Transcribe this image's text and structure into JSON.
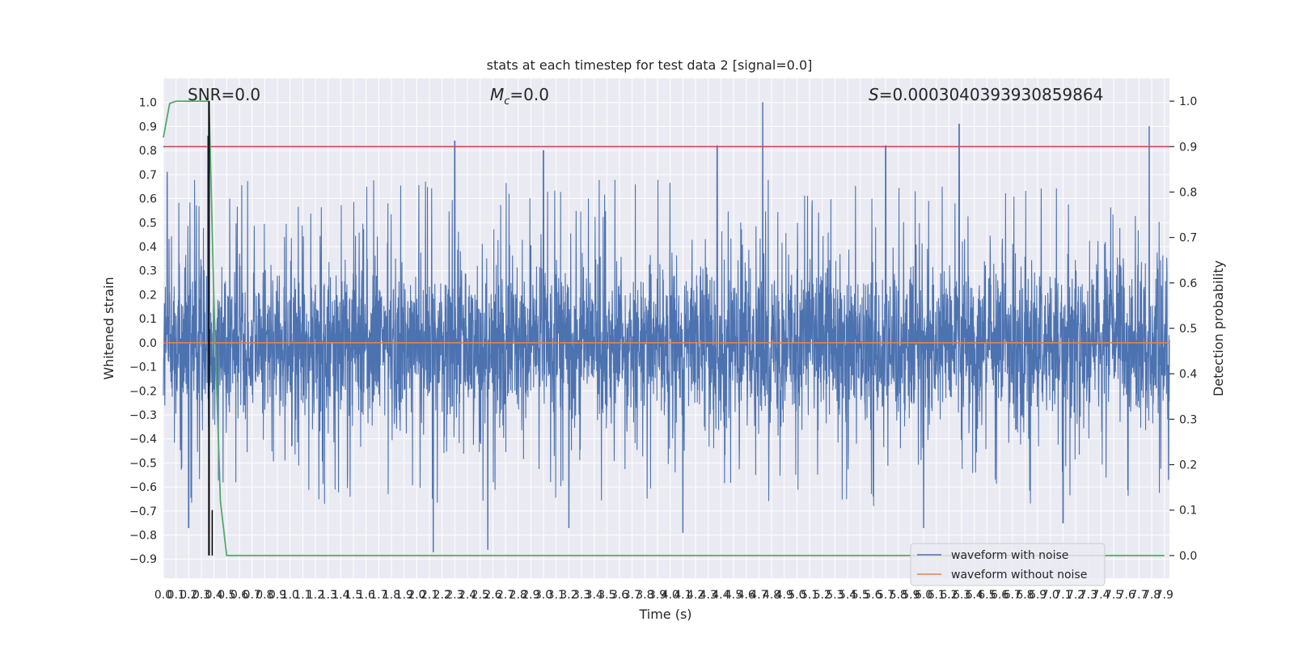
{
  "chart_data": {
    "type": "line",
    "title": "stats at each timestep for test data 2 [signal=0.0]",
    "xlabel": "Time (s)",
    "ylabel_left": "Whitened strain",
    "ylabel_right": "Detection probability",
    "xlim": [
      0.0,
      7.94
    ],
    "ylim_left": [
      -0.98,
      1.1
    ],
    "ylim_right": [
      -0.05,
      1.05
    ],
    "x_ticks": [
      "0.0",
      "0.1",
      "0.2",
      "0.3",
      "0.4",
      "0.5",
      "0.6",
      "0.7",
      "0.8",
      "0.9",
      "1.0",
      "1.1",
      "1.2",
      "1.3",
      "1.4",
      "1.5",
      "1.6",
      "1.7",
      "1.8",
      "1.9",
      "2.0",
      "2.1",
      "2.2",
      "2.3",
      "2.4",
      "2.5",
      "2.6",
      "2.7",
      "2.8",
      "2.9",
      "3.0",
      "3.1",
      "3.2",
      "3.3",
      "3.4",
      "3.5",
      "3.6",
      "3.7",
      "3.8",
      "3.9",
      "4.0",
      "4.1",
      "4.2",
      "4.3",
      "4.4",
      "4.5",
      "4.6",
      "4.7",
      "4.8",
      "4.9",
      "5.0",
      "5.1",
      "5.2",
      "5.3",
      "5.4",
      "5.5",
      "5.6",
      "5.7",
      "5.8",
      "5.9",
      "6.0",
      "6.1",
      "6.2",
      "6.3",
      "6.4",
      "6.5",
      "6.6",
      "6.7",
      "6.8",
      "6.9",
      "7.0",
      "7.1",
      "7.2",
      "7.3",
      "7.4",
      "7.5",
      "7.6",
      "7.7",
      "7.8",
      "7.9"
    ],
    "y_ticks_left": [
      "−0.9",
      "−0.8",
      "−0.7",
      "−0.6",
      "−0.5",
      "−0.4",
      "−0.3",
      "−0.2",
      "−0.1",
      "0.0",
      "0.1",
      "0.2",
      "0.3",
      "0.4",
      "0.5",
      "0.6",
      "0.7",
      "0.8",
      "0.9",
      "1.0"
    ],
    "y_ticks_right": [
      "0.0",
      "0.1",
      "0.2",
      "0.3",
      "0.4",
      "0.5",
      "0.6",
      "0.7",
      "0.8",
      "0.9",
      "1.0"
    ],
    "annotations": {
      "snr": "SNR=0.0",
      "mc_base": "M",
      "mc_sub": "c",
      "mc_value": "=0.0",
      "s_label": "S",
      "s_value": "=0.0003040393930859864"
    },
    "threshold_right": 0.9,
    "marker_time": 0.36,
    "series": [
      {
        "name": "waveform with noise",
        "color": "#4c72b0",
        "description_range": [
          -0.87,
          1.0
        ],
        "highlight_peaks": [
          [
            0.03,
            0.71
          ],
          [
            0.35,
            0.86
          ],
          [
            2.3,
            0.84
          ],
          [
            3.0,
            0.8
          ],
          [
            4.37,
            0.82
          ],
          [
            4.73,
            1.0
          ],
          [
            5.7,
            0.82
          ],
          [
            6.28,
            0.91
          ],
          [
            7.78,
            0.9
          ]
        ],
        "highlight_troughs": [
          [
            0.2,
            -0.77
          ],
          [
            2.13,
            -0.87
          ],
          [
            2.56,
            -0.86
          ],
          [
            3.2,
            -0.77
          ],
          [
            4.1,
            -0.79
          ],
          [
            6.0,
            -0.77
          ],
          [
            7.1,
            -0.75
          ]
        ]
      },
      {
        "name": "waveform without noise",
        "color": "#dd8452",
        "values_constant": 0.0
      },
      {
        "name": "detection probability",
        "color": "#55a868",
        "x": [
          0.0,
          0.05,
          0.1,
          0.15,
          0.2,
          0.25,
          0.3,
          0.36,
          0.4,
          0.45,
          0.5,
          1.0,
          2.0,
          3.0,
          4.0,
          5.0,
          6.0,
          7.0,
          7.9
        ],
        "values": [
          0.92,
          0.995,
          1.0,
          1.0,
          1.0,
          1.0,
          1.0,
          1.0,
          0.55,
          0.12,
          0.0,
          0.0,
          0.0,
          0.0,
          0.0,
          0.0,
          0.0,
          0.0,
          0.0
        ]
      }
    ],
    "legend": {
      "placement": "lower-right",
      "entries": [
        {
          "label": "waveform with noise",
          "color": "#4c72b0"
        },
        {
          "label": "waveform without noise",
          "color": "#dd8452"
        }
      ]
    },
    "colors": {
      "plot_bg": "#eaeaf2",
      "grid": "#ffffff",
      "threshold": "#c44e52",
      "marker": "#000000"
    }
  }
}
